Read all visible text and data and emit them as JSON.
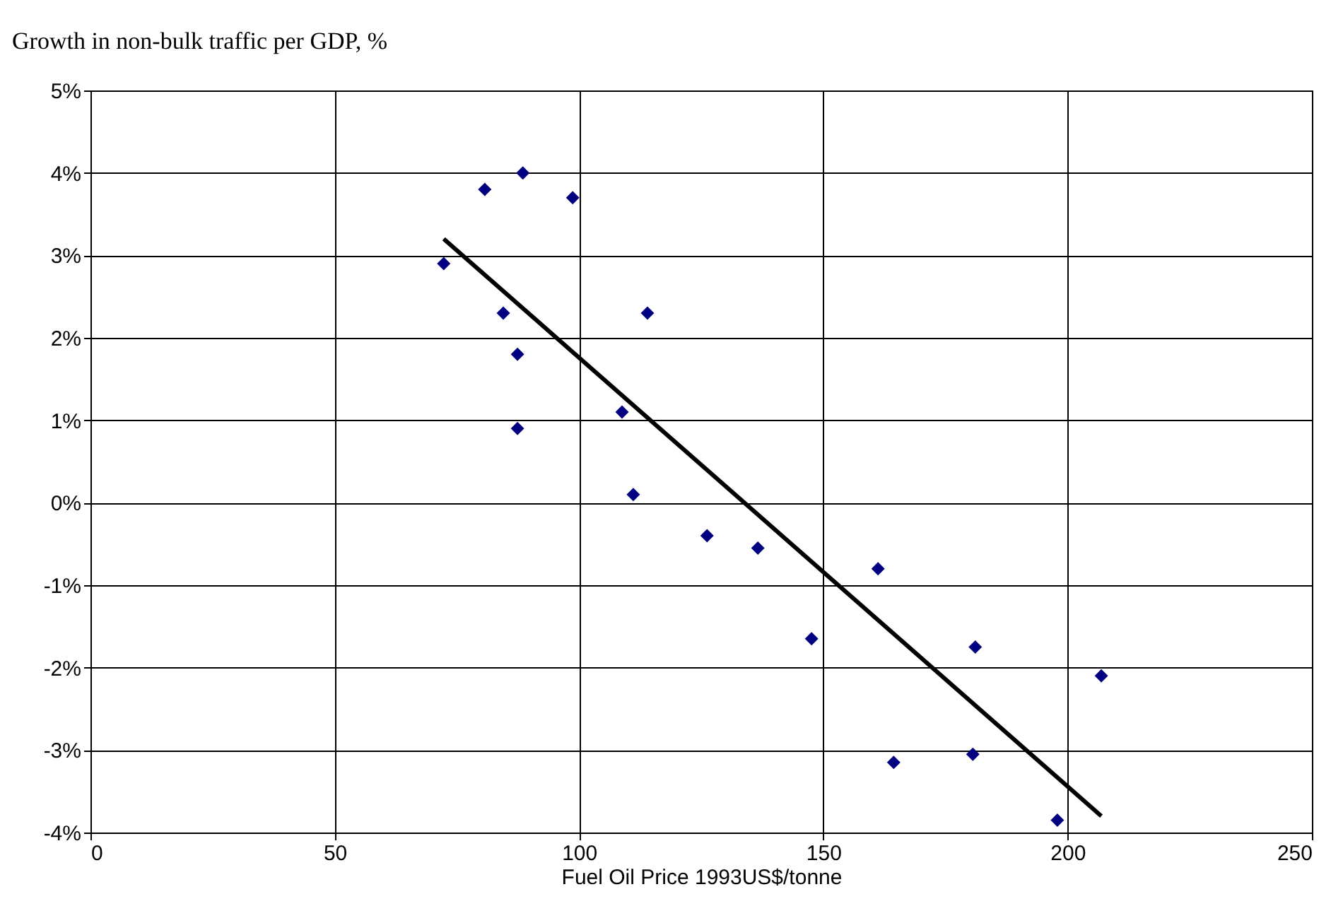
{
  "chart_data": {
    "type": "scatter",
    "xlabel": "Fuel Oil Price 1993US$/tonne",
    "ylabel": "Growth in non-bulk traffic per GDP, %",
    "xlim": [
      0,
      250
    ],
    "xticks": [
      0,
      50,
      100,
      150,
      200,
      250
    ],
    "ylim": [
      -4,
      5
    ],
    "yticks": [
      {
        "value": -4,
        "label": "-4%"
      },
      {
        "value": -3,
        "label": "-3%"
      },
      {
        "value": -2,
        "label": "-2%"
      },
      {
        "value": -1,
        "label": "-1%"
      },
      {
        "value": 0,
        "label": "0%"
      },
      {
        "value": 1,
        "label": "1%"
      },
      {
        "value": 2,
        "label": "2%"
      },
      {
        "value": 3,
        "label": "3%"
      },
      {
        "value": 4,
        "label": "4%"
      },
      {
        "value": 5,
        "label": "5%"
      }
    ],
    "grid": true,
    "series": [
      {
        "marker": "diamond",
        "color": "#000080",
        "x": [
          72.3,
          80.7,
          88.5,
          98.7,
          84.5,
          87.4,
          87.4,
          114,
          108.8,
          111.1,
          126.2,
          136.6,
          147.6,
          161.2,
          164.4,
          181.1,
          180.6,
          197.9,
          206.9
        ],
        "values": [
          2.9,
          3.8,
          4.0,
          3.7,
          2.3,
          1.8,
          0.9,
          2.3,
          1.1,
          0.1,
          -0.4,
          -0.55,
          -1.65,
          -0.8,
          -3.15,
          -1.75,
          -3.05,
          -3.85,
          -2.1
        ]
      },
      {
        "type": "line",
        "color": "#000000",
        "line_style": "solid",
        "marker": "none",
        "x": [
          72.3,
          206.9
        ],
        "values": [
          3.2,
          -3.8
        ]
      }
    ]
  }
}
